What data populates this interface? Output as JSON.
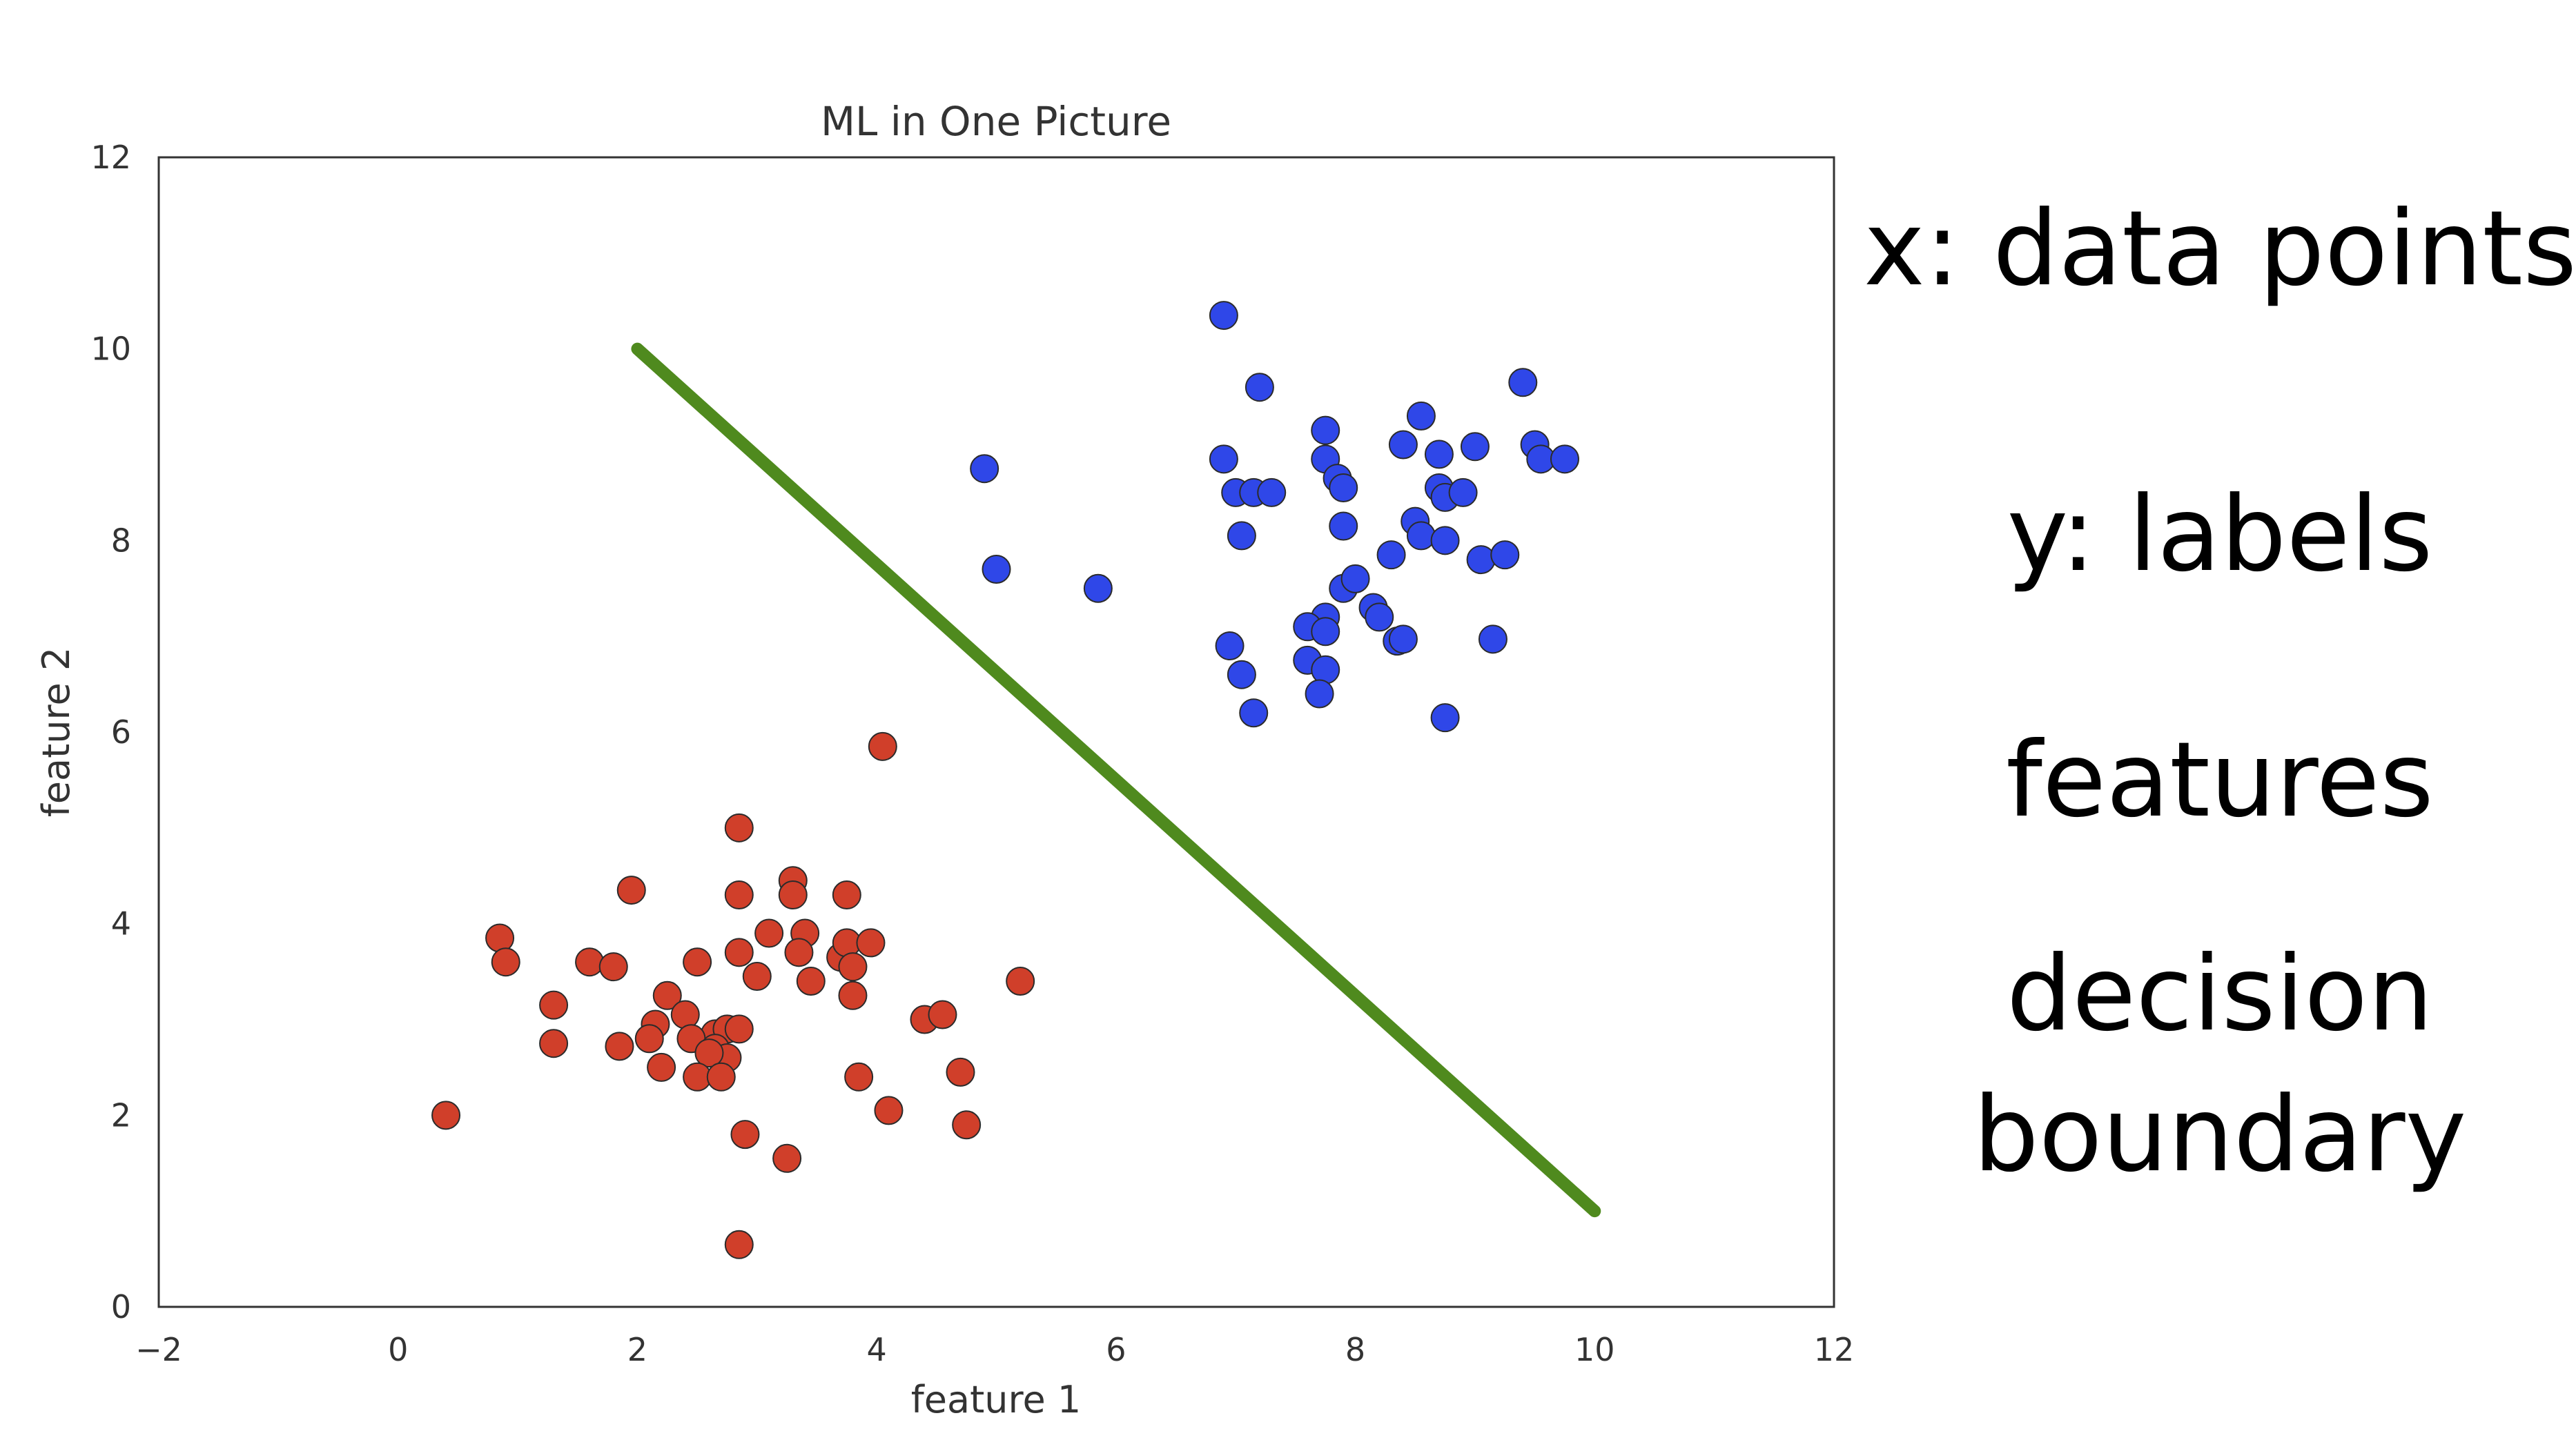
{
  "chart_data": {
    "type": "scatter",
    "title": "ML in One Picture",
    "xlabel": "feature 1",
    "ylabel": "feature 2",
    "xlim": [
      -2,
      12
    ],
    "ylim": [
      0,
      12
    ],
    "xticks": [
      "−2",
      "0",
      "2",
      "4",
      "6",
      "8",
      "10",
      "12"
    ],
    "xtick_values": [
      -2,
      0,
      2,
      4,
      6,
      8,
      10,
      12
    ],
    "yticks": [
      "0",
      "2",
      "4",
      "6",
      "8",
      "10",
      "12"
    ],
    "ytick_values": [
      0,
      2,
      4,
      6,
      8,
      10,
      12
    ],
    "grid": false,
    "series": [
      {
        "color": "#2f47e8",
        "points": [
          [
            6.9,
            10.35
          ],
          [
            7.2,
            9.6
          ],
          [
            9.4,
            9.65
          ],
          [
            7.75,
            9.15
          ],
          [
            8.55,
            9.3
          ],
          [
            4.9,
            8.75
          ],
          [
            6.9,
            8.85
          ],
          [
            7.75,
            8.85
          ],
          [
            8.4,
            9.0
          ],
          [
            8.7,
            8.9
          ],
          [
            9.0,
            8.98
          ],
          [
            9.5,
            9.0
          ],
          [
            9.55,
            8.85
          ],
          [
            9.75,
            8.85
          ],
          [
            7.0,
            8.5
          ],
          [
            7.15,
            8.5
          ],
          [
            7.3,
            8.5
          ],
          [
            7.85,
            8.65
          ],
          [
            7.9,
            8.55
          ],
          [
            8.7,
            8.55
          ],
          [
            8.75,
            8.45
          ],
          [
            8.9,
            8.5
          ],
          [
            7.05,
            8.05
          ],
          [
            7.9,
            8.15
          ],
          [
            8.5,
            8.2
          ],
          [
            8.55,
            8.05
          ],
          [
            8.75,
            8.0
          ],
          [
            8.3,
            7.85
          ],
          [
            9.05,
            7.8
          ],
          [
            9.25,
            7.85
          ],
          [
            5.0,
            7.7
          ],
          [
            5.85,
            7.5
          ],
          [
            7.9,
            7.5
          ],
          [
            8.0,
            7.6
          ],
          [
            8.15,
            7.3
          ],
          [
            8.2,
            7.2
          ],
          [
            7.75,
            7.2
          ],
          [
            7.6,
            7.1
          ],
          [
            7.75,
            7.05
          ],
          [
            6.95,
            6.9
          ],
          [
            8.35,
            6.95
          ],
          [
            8.4,
            6.97
          ],
          [
            9.15,
            6.97
          ],
          [
            7.6,
            6.75
          ],
          [
            7.75,
            6.65
          ],
          [
            7.05,
            6.6
          ],
          [
            7.7,
            6.4
          ],
          [
            7.15,
            6.2
          ],
          [
            8.75,
            6.15
          ]
        ]
      },
      {
        "color": "#d03f2a",
        "points": [
          [
            4.05,
            5.85
          ],
          [
            2.85,
            5.0
          ],
          [
            1.95,
            4.35
          ],
          [
            2.85,
            4.3
          ],
          [
            3.3,
            4.45
          ],
          [
            3.3,
            4.3
          ],
          [
            3.75,
            4.3
          ],
          [
            0.85,
            3.85
          ],
          [
            0.9,
            3.6
          ],
          [
            1.6,
            3.6
          ],
          [
            1.8,
            3.55
          ],
          [
            2.5,
            3.6
          ],
          [
            2.85,
            3.7
          ],
          [
            3.1,
            3.9
          ],
          [
            3.4,
            3.9
          ],
          [
            3.35,
            3.7
          ],
          [
            3.7,
            3.65
          ],
          [
            3.75,
            3.8
          ],
          [
            3.8,
            3.55
          ],
          [
            3.95,
            3.8
          ],
          [
            3.0,
            3.45
          ],
          [
            3.45,
            3.4
          ],
          [
            5.2,
            3.4
          ],
          [
            1.3,
            3.15
          ],
          [
            2.25,
            3.25
          ],
          [
            2.4,
            3.05
          ],
          [
            3.8,
            3.25
          ],
          [
            2.15,
            2.95
          ],
          [
            2.65,
            2.85
          ],
          [
            2.75,
            2.9
          ],
          [
            2.85,
            2.9
          ],
          [
            4.4,
            3.0
          ],
          [
            4.55,
            3.05
          ],
          [
            1.3,
            2.75
          ],
          [
            1.85,
            2.72
          ],
          [
            2.1,
            2.8
          ],
          [
            2.45,
            2.8
          ],
          [
            2.65,
            2.7
          ],
          [
            2.75,
            2.6
          ],
          [
            2.6,
            2.65
          ],
          [
            2.2,
            2.5
          ],
          [
            2.5,
            2.4
          ],
          [
            2.7,
            2.4
          ],
          [
            3.85,
            2.4
          ],
          [
            4.7,
            2.45
          ],
          [
            0.4,
            2.0
          ],
          [
            4.1,
            2.05
          ],
          [
            4.75,
            1.9
          ],
          [
            2.9,
            1.8
          ],
          [
            3.25,
            1.55
          ],
          [
            2.85,
            0.65
          ]
        ]
      }
    ],
    "decision_boundary": {
      "color": "#4f8a1e",
      "points": [
        [
          2,
          10
        ],
        [
          10,
          1
        ]
      ]
    }
  },
  "annotations": {
    "data_points": "x: data points",
    "labels": "y: labels",
    "features": "features",
    "decision_line1": "decision",
    "decision_line2": "boundary"
  }
}
